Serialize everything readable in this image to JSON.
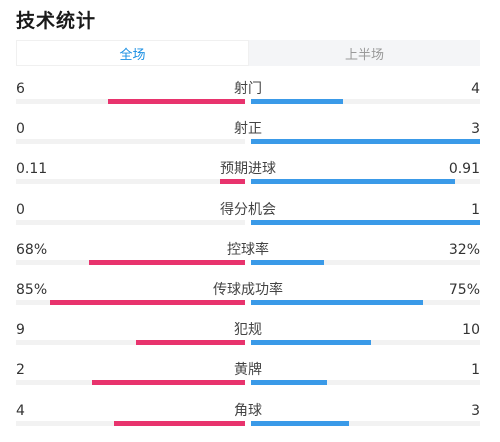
{
  "title": "技术统计",
  "tabs": [
    {
      "label": "全场",
      "active": true
    },
    {
      "label": "上半场",
      "active": false
    }
  ],
  "colors": {
    "home": "#e8336d",
    "away": "#3a9ae8",
    "accent": "#1a8fe3"
  },
  "stats": [
    {
      "label": "射门",
      "left": "6",
      "right": "4",
      "left_share": 0.6,
      "right_share": 0.4
    },
    {
      "label": "射正",
      "left": "0",
      "right": "3",
      "left_share": 0,
      "right_share": 1
    },
    {
      "label": "预期进球",
      "left": "0.11",
      "right": "0.91",
      "left_share": 0.108,
      "right_share": 0.892
    },
    {
      "label": "得分机会",
      "left": "0",
      "right": "1",
      "left_share": 0,
      "right_share": 1
    },
    {
      "label": "控球率",
      "left": "68%",
      "right": "32%",
      "left_share": 0.68,
      "right_share": 0.32
    },
    {
      "label": "传球成功率",
      "left": "85%",
      "right": "75%",
      "left_share": 0.85,
      "right_share": 0.75
    },
    {
      "label": "犯规",
      "left": "9",
      "right": "10",
      "left_share": 0.474,
      "right_share": 0.526
    },
    {
      "label": "黄牌",
      "left": "2",
      "right": "1",
      "left_share": 0.667,
      "right_share": 0.333
    },
    {
      "label": "角球",
      "left": "4",
      "right": "3",
      "left_share": 0.571,
      "right_share": 0.429
    }
  ]
}
